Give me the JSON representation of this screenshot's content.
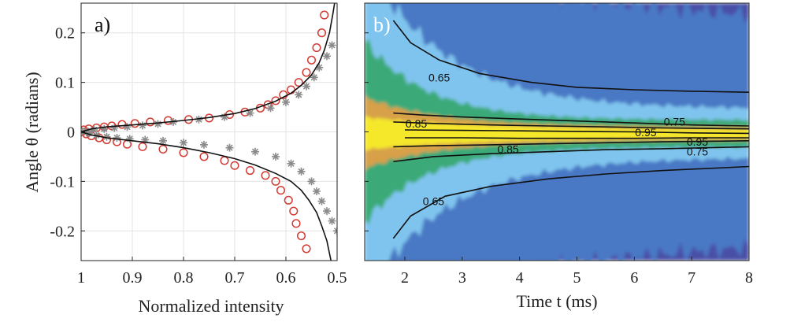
{
  "chart_data": [
    {
      "type": "scatter",
      "panel_label": "a)",
      "xlabel": "Normalized intensity",
      "ylabel": "Angle θ (radians)",
      "xlim": [
        1.0,
        0.5
      ],
      "ylim": [
        -0.26,
        0.26
      ],
      "x_reversed": true,
      "grid": true,
      "xticks": [
        "1",
        "0.9",
        "0.8",
        "0.7",
        "0.6",
        "0.5"
      ],
      "yticks": [
        "0.2",
        "0.1",
        "0",
        "-0.1",
        "-0.2"
      ],
      "series": [
        {
          "kind": "circles",
          "color": "#d23a32",
          "points": [
            [
              0.999,
              0.0
            ],
            [
              0.995,
              0.004
            ],
            [
              0.99,
              -0.004
            ],
            [
              0.985,
              0.006
            ],
            [
              0.98,
              -0.008
            ],
            [
              0.97,
              0.008
            ],
            [
              0.965,
              -0.012
            ],
            [
              0.955,
              0.01
            ],
            [
              0.95,
              -0.016
            ],
            [
              0.94,
              0.012
            ],
            [
              0.93,
              -0.02
            ],
            [
              0.92,
              0.015
            ],
            [
              0.91,
              -0.025
            ],
            [
              0.895,
              0.017
            ],
            [
              0.88,
              -0.03
            ],
            [
              0.865,
              0.02
            ],
            [
              0.84,
              -0.035
            ],
            [
              0.83,
              0.023
            ],
            [
              0.8,
              -0.042
            ],
            [
              0.79,
              0.025
            ],
            [
              0.76,
              -0.05
            ],
            [
              0.75,
              0.028
            ],
            [
              0.72,
              -0.058
            ],
            [
              0.71,
              0.035
            ],
            [
              0.7,
              -0.068
            ],
            [
              0.68,
              0.04
            ],
            [
              0.67,
              -0.078
            ],
            [
              0.65,
              0.048
            ],
            [
              0.64,
              -0.088
            ],
            [
              0.635,
              0.055
            ],
            [
              0.62,
              0.063
            ],
            [
              0.62,
              -0.1
            ],
            [
              0.605,
              0.075
            ],
            [
              0.61,
              -0.118
            ],
            [
              0.59,
              0.085
            ],
            [
              0.595,
              -0.138
            ],
            [
              0.575,
              0.1
            ],
            [
              0.585,
              -0.16
            ],
            [
              0.56,
              0.12
            ],
            [
              0.58,
              -0.185
            ],
            [
              0.55,
              0.145
            ],
            [
              0.57,
              -0.21
            ],
            [
              0.54,
              0.17
            ],
            [
              0.56,
              -0.236
            ],
            [
              0.53,
              0.2
            ],
            [
              0.525,
              0.236
            ]
          ]
        },
        {
          "kind": "asterisks",
          "color": "#8a8a8a",
          "points": [
            [
              0.997,
              0.0
            ],
            [
              0.99,
              0.002
            ],
            [
              0.985,
              -0.003
            ],
            [
              0.975,
              0.004
            ],
            [
              0.97,
              -0.007
            ],
            [
              0.955,
              0.006
            ],
            [
              0.95,
              -0.01
            ],
            [
              0.935,
              0.008
            ],
            [
              0.93,
              -0.012
            ],
            [
              0.91,
              0.01
            ],
            [
              0.905,
              -0.014
            ],
            [
              0.88,
              0.013
            ],
            [
              0.875,
              -0.016
            ],
            [
              0.85,
              0.016
            ],
            [
              0.84,
              -0.018
            ],
            [
              0.82,
              0.02
            ],
            [
              0.8,
              -0.022
            ],
            [
              0.77,
              0.025
            ],
            [
              0.76,
              -0.026
            ],
            [
              0.72,
              0.03
            ],
            [
              0.71,
              -0.032
            ],
            [
              0.67,
              0.038
            ],
            [
              0.66,
              -0.04
            ],
            [
              0.63,
              0.048
            ],
            [
              0.62,
              -0.05
            ],
            [
              0.6,
              0.06
            ],
            [
              0.59,
              -0.064
            ],
            [
              0.575,
              0.075
            ],
            [
              0.57,
              -0.08
            ],
            [
              0.56,
              0.092
            ],
            [
              0.55,
              -0.1
            ],
            [
              0.545,
              0.11
            ],
            [
              0.54,
              -0.12
            ],
            [
              0.535,
              0.13
            ],
            [
              0.53,
              -0.14
            ],
            [
              0.52,
              0.153
            ],
            [
              0.52,
              -0.16
            ],
            [
              0.51,
              0.175
            ],
            [
              0.51,
              -0.18
            ],
            [
              0.5,
              -0.2
            ]
          ]
        },
        {
          "kind": "line",
          "color": "#111111",
          "upper": [
            [
              1.0,
              0.0
            ],
            [
              0.98,
              0.006
            ],
            [
              0.95,
              0.01
            ],
            [
              0.9,
              0.014
            ],
            [
              0.85,
              0.018
            ],
            [
              0.8,
              0.023
            ],
            [
              0.75,
              0.029
            ],
            [
              0.7,
              0.037
            ],
            [
              0.66,
              0.047
            ],
            [
              0.62,
              0.062
            ],
            [
              0.59,
              0.078
            ],
            [
              0.57,
              0.094
            ],
            [
              0.55,
              0.115
            ],
            [
              0.535,
              0.14
            ],
            [
              0.525,
              0.165
            ],
            [
              0.515,
              0.2
            ],
            [
              0.508,
              0.24
            ],
            [
              0.505,
              0.26
            ]
          ],
          "lower": [
            [
              1.0,
              0.0
            ],
            [
              0.98,
              -0.006
            ],
            [
              0.95,
              -0.012
            ],
            [
              0.9,
              -0.018
            ],
            [
              0.85,
              -0.024
            ],
            [
              0.8,
              -0.032
            ],
            [
              0.75,
              -0.042
            ],
            [
              0.7,
              -0.054
            ],
            [
              0.66,
              -0.067
            ],
            [
              0.62,
              -0.084
            ],
            [
              0.59,
              -0.1
            ],
            [
              0.57,
              -0.118
            ],
            [
              0.555,
              -0.138
            ],
            [
              0.54,
              -0.163
            ],
            [
              0.53,
              -0.19
            ],
            [
              0.52,
              -0.22
            ],
            [
              0.512,
              -0.26
            ]
          ]
        }
      ]
    },
    {
      "type": "heatmap",
      "panel_label": "b)",
      "xlabel": "Time t (ms)",
      "xlim": [
        1.3,
        8.0
      ],
      "ylim": [
        -0.26,
        0.26
      ],
      "xticks": [
        "2",
        "3",
        "4",
        "5",
        "6",
        "7",
        "8"
      ],
      "colormap": [
        "#4a50a6",
        "#4878c4",
        "#7fc4ee",
        "#3aaa78",
        "#d7a048",
        "#f5e82a"
      ],
      "contour_levels": [
        "0.65",
        "0.75",
        "0.85",
        "0.95"
      ],
      "contours": [
        {
          "level": "0.65",
          "points": [
            [
              1.8,
              0.225
            ],
            [
              2.1,
              0.18
            ],
            [
              2.6,
              0.145
            ],
            [
              3.3,
              0.118
            ],
            [
              4.2,
              0.1
            ],
            [
              5.0,
              0.09
            ],
            [
              6.0,
              0.085
            ],
            [
              7.0,
              0.082
            ],
            [
              8.0,
              0.08
            ]
          ]
        },
        {
          "level": "0.75",
          "points": [
            [
              1.8,
              0.038
            ],
            [
              2.3,
              0.034
            ],
            [
              3.0,
              0.03
            ],
            [
              4.0,
              0.026
            ],
            [
              5.0,
              0.022
            ],
            [
              6.0,
              0.018
            ],
            [
              7.0,
              0.014
            ],
            [
              8.0,
              0.012
            ]
          ]
        },
        {
          "level": "0.85",
          "points": [
            [
              1.8,
              0.02
            ],
            [
              2.5,
              0.017
            ],
            [
              3.5,
              0.014
            ],
            [
              4.5,
              0.012
            ],
            [
              5.5,
              0.01
            ],
            [
              6.5,
              0.008
            ],
            [
              8.0,
              0.006
            ]
          ]
        },
        {
          "level": "0.95",
          "points": [
            [
              2.0,
              0.004
            ],
            [
              3.0,
              0.003
            ],
            [
              4.0,
              0.002
            ],
            [
              5.0,
              0.001
            ],
            [
              6.0,
              0.0
            ],
            [
              7.0,
              -0.002
            ],
            [
              8.0,
              -0.003
            ]
          ]
        },
        {
          "level": "0.95",
          "points": [
            [
              2.0,
              -0.012
            ],
            [
              3.0,
              -0.012
            ],
            [
              4.0,
              -0.013
            ],
            [
              5.0,
              -0.013
            ],
            [
              6.0,
              -0.013
            ],
            [
              7.0,
              -0.012
            ],
            [
              8.0,
              -0.012
            ]
          ]
        },
        {
          "level": "0.85",
          "points": [
            [
              1.8,
              -0.03
            ],
            [
              2.5,
              -0.028
            ],
            [
              3.5,
              -0.026
            ],
            [
              4.5,
              -0.024
            ],
            [
              5.5,
              -0.022
            ],
            [
              6.5,
              -0.02
            ],
            [
              8.0,
              -0.018
            ]
          ]
        },
        {
          "level": "0.75",
          "points": [
            [
              1.8,
              -0.06
            ],
            [
              2.5,
              -0.05
            ],
            [
              3.5,
              -0.044
            ],
            [
              4.5,
              -0.04
            ],
            [
              5.5,
              -0.036
            ],
            [
              6.5,
              -0.034
            ],
            [
              8.0,
              -0.03
            ]
          ]
        },
        {
          "level": "0.65",
          "points": [
            [
              1.8,
              -0.215
            ],
            [
              2.1,
              -0.17
            ],
            [
              2.7,
              -0.13
            ],
            [
              3.5,
              -0.11
            ],
            [
              4.5,
              -0.095
            ],
            [
              5.5,
              -0.085
            ],
            [
              6.5,
              -0.078
            ],
            [
              8.0,
              -0.07
            ]
          ]
        }
      ],
      "contour_labels": [
        {
          "text": "0.65",
          "x": 2.6,
          "y": 0.11
        },
        {
          "text": "0.85",
          "x": 2.2,
          "y": 0.017
        },
        {
          "text": "0.75",
          "x": 6.7,
          "y": 0.021
        },
        {
          "text": "0.95",
          "x": 6.2,
          "y": -0.001
        },
        {
          "text": "0.95",
          "x": 7.1,
          "y": -0.02
        },
        {
          "text": "0.85",
          "x": 3.8,
          "y": -0.035
        },
        {
          "text": "0.75",
          "x": 7.1,
          "y": -0.04
        },
        {
          "text": "0.65",
          "x": 2.5,
          "y": -0.14
        }
      ]
    }
  ]
}
